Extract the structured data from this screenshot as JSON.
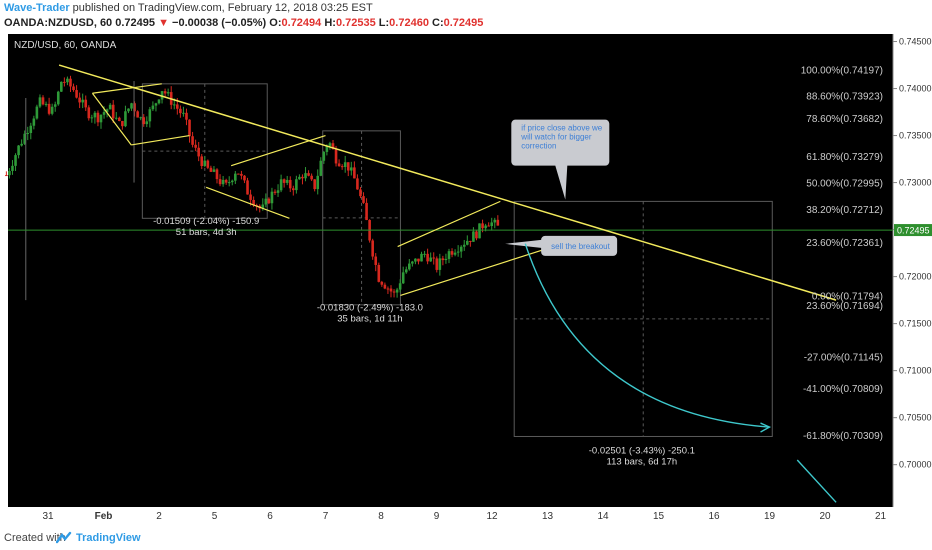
{
  "header": {
    "author": "Wave-Trader",
    "published": " published on TradingView.com, February 12, 2018 03:25 EST",
    "symbol_line": "OANDA:NZDUSD, 60",
    "last": "0.72495",
    "change_arrow": "▼",
    "change": "−0.00038 (−0.05%)",
    "open_label": "O:",
    "open": "0.72494",
    "high_label": "H:",
    "high": "0.72535",
    "low_label": "L:",
    "low": "0.72460",
    "close_label": "C:",
    "close": "0.72495"
  },
  "footer": {
    "created_with": "Created with",
    "brand": "TradingView"
  },
  "chart_data": {
    "type": "candlestick",
    "title": "NZD/USD, 60, OANDA",
    "ylim": [
      0.6955,
      0.7458
    ],
    "y_ticks": [
      "0.74500",
      "0.74000",
      "0.73500",
      "0.73000",
      "0.72500",
      "0.72000",
      "0.71500",
      "0.71000",
      "0.70500",
      "0.70000"
    ],
    "x_ticks": [
      {
        "label": "31",
        "x": 0
      },
      {
        "label": "Feb",
        "x": 1
      },
      {
        "label": "2",
        "x": 2
      },
      {
        "label": "5",
        "x": 3
      },
      {
        "label": "6",
        "x": 4
      },
      {
        "label": "7",
        "x": 5
      },
      {
        "label": "8",
        "x": 6
      },
      {
        "label": "9",
        "x": 7
      },
      {
        "label": "12",
        "x": 8
      },
      {
        "label": "13",
        "x": 9
      },
      {
        "label": "14",
        "x": 10
      },
      {
        "label": "15",
        "x": 11
      },
      {
        "label": "16",
        "x": 12
      },
      {
        "label": "19",
        "x": 13
      },
      {
        "label": "20",
        "x": 14
      },
      {
        "label": "21",
        "x": 15
      }
    ],
    "current_price": "0.72495",
    "price_path": [
      {
        "x": -0.75,
        "y": 0.7308
      },
      {
        "x": -0.55,
        "y": 0.7335
      },
      {
        "x": -0.35,
        "y": 0.736
      },
      {
        "x": -0.15,
        "y": 0.7385
      },
      {
        "x": 0.1,
        "y": 0.7375
      },
      {
        "x": 0.25,
        "y": 0.741
      },
      {
        "x": 0.45,
        "y": 0.74
      },
      {
        "x": 0.7,
        "y": 0.7375
      },
      {
        "x": 0.9,
        "y": 0.737
      },
      {
        "x": 1.1,
        "y": 0.738
      },
      {
        "x": 1.3,
        "y": 0.736
      },
      {
        "x": 1.5,
        "y": 0.7385
      },
      {
        "x": 1.7,
        "y": 0.7365
      },
      {
        "x": 1.9,
        "y": 0.738
      },
      {
        "x": 2.05,
        "y": 0.74
      },
      {
        "x": 2.25,
        "y": 0.7385
      },
      {
        "x": 2.45,
        "y": 0.737
      },
      {
        "x": 2.6,
        "y": 0.734
      },
      {
        "x": 2.85,
        "y": 0.7315
      },
      {
        "x": 3.0,
        "y": 0.7308
      },
      {
        "x": 3.2,
        "y": 0.7295
      },
      {
        "x": 3.4,
        "y": 0.7315
      },
      {
        "x": 3.6,
        "y": 0.729
      },
      {
        "x": 3.85,
        "y": 0.727
      },
      {
        "x": 4.0,
        "y": 0.7285
      },
      {
        "x": 4.2,
        "y": 0.73
      },
      {
        "x": 4.4,
        "y": 0.7295
      },
      {
        "x": 4.6,
        "y": 0.731
      },
      {
        "x": 4.8,
        "y": 0.7295
      },
      {
        "x": 4.95,
        "y": 0.733
      },
      {
        "x": 5.05,
        "y": 0.7345
      },
      {
        "x": 5.2,
        "y": 0.7325
      },
      {
        "x": 5.4,
        "y": 0.7318
      },
      {
        "x": 5.55,
        "y": 0.73
      },
      {
        "x": 5.7,
        "y": 0.727
      },
      {
        "x": 5.8,
        "y": 0.724
      },
      {
        "x": 5.95,
        "y": 0.72
      },
      {
        "x": 6.1,
        "y": 0.719
      },
      {
        "x": 6.25,
        "y": 0.718
      },
      {
        "x": 6.4,
        "y": 0.7205
      },
      {
        "x": 6.6,
        "y": 0.7215
      },
      {
        "x": 6.8,
        "y": 0.7225
      },
      {
        "x": 7.0,
        "y": 0.721
      },
      {
        "x": 7.2,
        "y": 0.7225
      },
      {
        "x": 7.45,
        "y": 0.7235
      },
      {
        "x": 7.7,
        "y": 0.7245
      },
      {
        "x": 7.9,
        "y": 0.726
      },
      {
        "x": 8.05,
        "y": 0.7255
      },
      {
        "x": 8.15,
        "y": 0.725
      }
    ],
    "fib_levels": [
      {
        "label": "100.00%(0.74197)",
        "y": 0.74197
      },
      {
        "label": "88.60%(0.73923)",
        "y": 0.73923
      },
      {
        "label": "78.60%(0.73682)",
        "y": 0.73682
      },
      {
        "label": "61.80%(0.73279)",
        "y": 0.73279
      },
      {
        "label": "50.00%(0.72995)",
        "y": 0.72995
      },
      {
        "label": "38.20%(0.72712)",
        "y": 0.72712
      },
      {
        "label": "23.60%(0.72361)",
        "y": 0.72361
      },
      {
        "label": "0.00%(0.71794)",
        "y": 0.71794
      },
      {
        "label": "23.60%(0.71694)",
        "y": 0.71694
      },
      {
        "label": "-27.00%(0.71145)",
        "y": 0.71145
      },
      {
        "label": "-41.00%(0.70809)",
        "y": 0.70809
      },
      {
        "label": "-61.80%(0.70309)",
        "y": 0.70309
      }
    ],
    "measurements": [
      {
        "line1": "-0.01509 (-2.04%) -150.9",
        "line2": "51 bars, 4d 3h",
        "x": 2.85,
        "y": 0.7256
      },
      {
        "line1": "-0.01830 (-2.49%) -183.0",
        "line2": "35 bars, 1d 11h",
        "x": 5.8,
        "y": 0.7164
      },
      {
        "line1": "-0.02501 (-3.43%) -250.1",
        "line2": "113 bars, 6d 17h",
        "x": 10.7,
        "y": 0.7012
      }
    ],
    "annotations": [
      {
        "text": [
          "if price close above we",
          "will watch for bigger",
          "correction"
        ],
        "x": 8.6,
        "y": 0.7335
      },
      {
        "text": [
          "sell the breakout"
        ],
        "x": 9.75,
        "y": 0.7238
      }
    ],
    "colors": {
      "background": "#000000",
      "up": "#2e9a38",
      "down": "#d8281e",
      "trendline": "#f2ea5c",
      "current_line": "#2e8f2e",
      "current_box": "#2e8f2e",
      "projection": "#3ec8cc",
      "callout": "#c9cbd0",
      "callout_text": "#3d7fd6",
      "axis_text": "#cccccc"
    }
  }
}
